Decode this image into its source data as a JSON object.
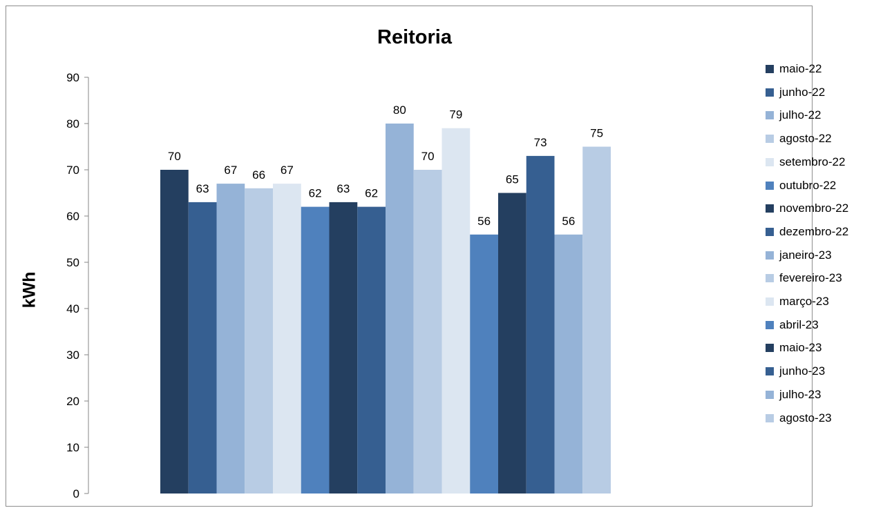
{
  "chart_data": {
    "type": "bar",
    "title": "Reitoria",
    "xlabel": "",
    "ylabel": "kWh",
    "ylim": [
      0,
      90
    ],
    "yticks": [
      "0",
      "10",
      "20",
      "30",
      "40",
      "50",
      "60",
      "70",
      "80",
      "90"
    ],
    "grid": false,
    "legend_position": "right",
    "series": [
      {
        "name": "maio-22",
        "values": [
          70
        ],
        "label": "70",
        "color": "#243f60"
      },
      {
        "name": "junho-22",
        "values": [
          63
        ],
        "label": "63",
        "color": "#365f91"
      },
      {
        "name": "julho-22",
        "values": [
          67
        ],
        "label": "67",
        "color": "#95b3d7"
      },
      {
        "name": "agosto-22",
        "values": [
          66
        ],
        "label": "66",
        "color": "#b8cce4"
      },
      {
        "name": "setembro-22",
        "values": [
          67
        ],
        "label": "67",
        "color": "#dce6f1"
      },
      {
        "name": "outubro-22",
        "values": [
          62
        ],
        "label": "62",
        "color": "#4f81bd"
      },
      {
        "name": "novembro-22",
        "values": [
          63
        ],
        "label": "63",
        "color": "#243f60"
      },
      {
        "name": "dezembro-22",
        "values": [
          62
        ],
        "label": "62",
        "color": "#365f91"
      },
      {
        "name": "janeiro-23",
        "values": [
          80
        ],
        "label": "80",
        "color": "#95b3d7"
      },
      {
        "name": "fevereiro-23",
        "values": [
          70
        ],
        "label": "70",
        "color": "#b8cce4"
      },
      {
        "name": "março-23",
        "values": [
          79
        ],
        "label": "79",
        "color": "#dce6f1"
      },
      {
        "name": "abril-23",
        "values": [
          56
        ],
        "label": "56",
        "color": "#4f81bd"
      },
      {
        "name": "maio-23",
        "values": [
          65
        ],
        "label": "65",
        "color": "#243f60"
      },
      {
        "name": "junho-23",
        "values": [
          73
        ],
        "label": "73",
        "color": "#365f91"
      },
      {
        "name": "julho-23",
        "values": [
          56
        ],
        "label": "56",
        "color": "#95b3d7"
      },
      {
        "name": "agosto-23",
        "values": [
          75
        ],
        "label": "75",
        "color": "#b8cce4"
      }
    ]
  }
}
